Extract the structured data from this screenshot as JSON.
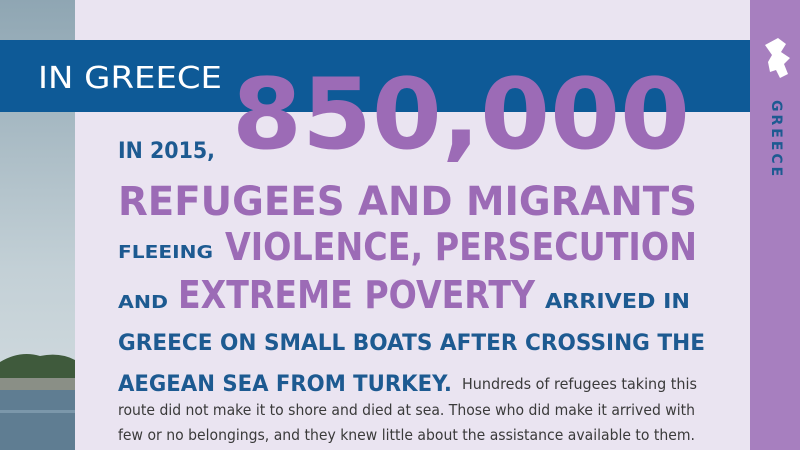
{
  "banner": {
    "title": "IN GREECE"
  },
  "sidebar": {
    "label": "GREECE"
  },
  "headline": {
    "intro": "IN 2015,",
    "number": "850,000",
    "line1": "REFUGEES AND MIGRANTS",
    "line2": [
      "FLEEING",
      "VIOLENCE, PERSECUTION"
    ],
    "line3": [
      "AND",
      "EXTREME POVERTY",
      "ARRIVED IN"
    ],
    "line4": "GREECE ON SMALL BOATS AFTER CROSSING THE",
    "line5": "AEGEAN SEA FROM TURKEY."
  },
  "body": {
    "lines": [
      "Hundreds of refugees taking this",
      "route did not make it to shore and died at sea. Those who did make it arrived with",
      "few or no belongings, and they knew little about the assistance available to them."
    ]
  }
}
